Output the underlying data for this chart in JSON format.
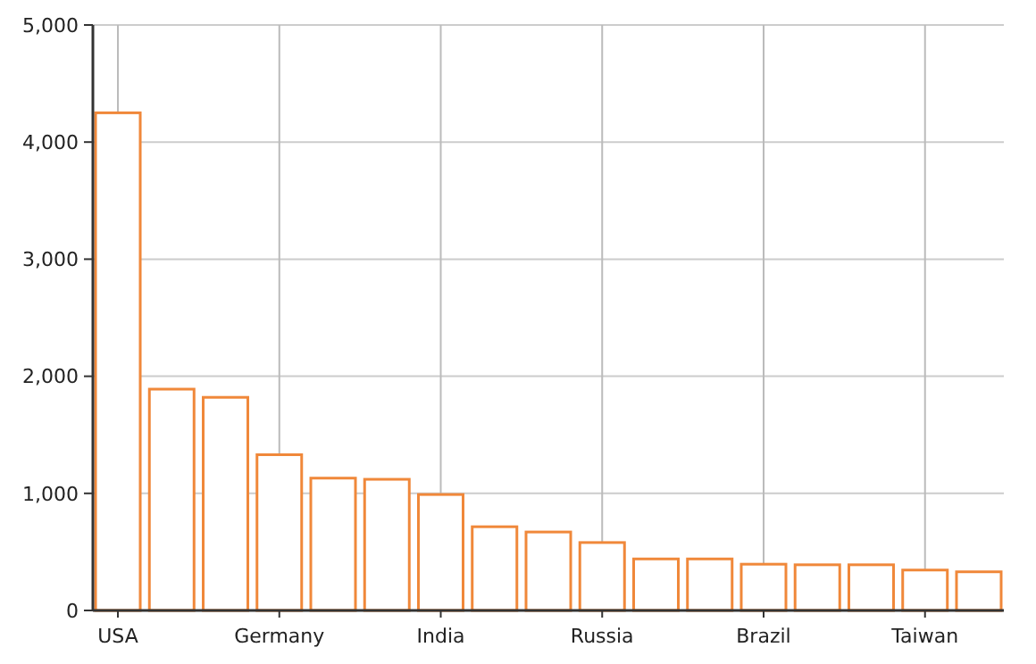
{
  "chart_data": {
    "type": "bar",
    "categories": [
      "USA",
      null,
      null,
      "Germany",
      null,
      null,
      "India",
      null,
      null,
      "Russia",
      null,
      null,
      "Brazil",
      null,
      null,
      "Taiwan",
      null
    ],
    "values": [
      4250,
      1890,
      1820,
      1330,
      1130,
      1120,
      990,
      715,
      670,
      580,
      440,
      440,
      395,
      390,
      390,
      345,
      330
    ],
    "color": "#f0883a",
    "ylim": [
      0,
      5000
    ],
    "yticks": [
      {
        "value": 0,
        "label": "0"
      },
      {
        "value": 1000,
        "label": "1,000"
      },
      {
        "value": 2000,
        "label": "2,000"
      },
      {
        "value": 3000,
        "label": "3,000"
      },
      {
        "value": 4000,
        "label": "4,000"
      },
      {
        "value": 5000,
        "label": "5,000"
      }
    ],
    "grid": true
  }
}
